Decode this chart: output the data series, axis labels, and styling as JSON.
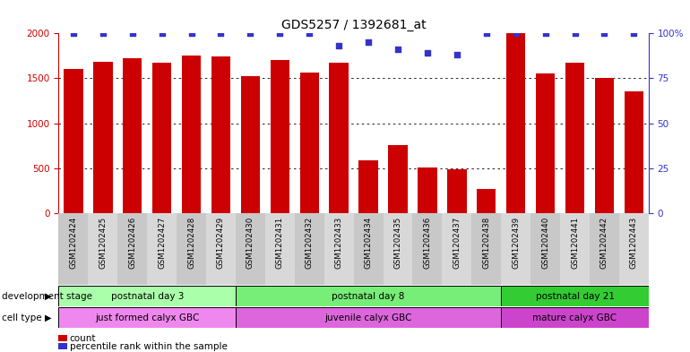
{
  "title": "GDS5257 / 1392681_at",
  "samples": [
    "GSM1202424",
    "GSM1202425",
    "GSM1202426",
    "GSM1202427",
    "GSM1202428",
    "GSM1202429",
    "GSM1202430",
    "GSM1202431",
    "GSM1202432",
    "GSM1202433",
    "GSM1202434",
    "GSM1202435",
    "GSM1202436",
    "GSM1202437",
    "GSM1202438",
    "GSM1202439",
    "GSM1202440",
    "GSM1202441",
    "GSM1202442",
    "GSM1202443"
  ],
  "counts": [
    1600,
    1680,
    1720,
    1670,
    1750,
    1740,
    1520,
    1700,
    1560,
    1670,
    590,
    760,
    510,
    490,
    265,
    2000,
    1550,
    1670,
    1500,
    1350
  ],
  "percentile_ranks": [
    100,
    100,
    100,
    100,
    100,
    100,
    100,
    100,
    100,
    93,
    95,
    91,
    89,
    88,
    100,
    100,
    100,
    100,
    100,
    100
  ],
  "bar_color": "#cc0000",
  "dot_color": "#3333cc",
  "left_ylim": [
    0,
    2000
  ],
  "right_ylim": [
    0,
    100
  ],
  "left_yticks": [
    0,
    500,
    1000,
    1500,
    2000
  ],
  "right_yticks": [
    0,
    25,
    50,
    75,
    100
  ],
  "right_yticklabels": [
    "0",
    "25",
    "50",
    "75",
    "100%"
  ],
  "grid_values": [
    500,
    1000,
    1500
  ],
  "development_stages": [
    {
      "label": "postnatal day 3",
      "start": 0,
      "end": 5,
      "color": "#aaffaa"
    },
    {
      "label": "postnatal day 8",
      "start": 6,
      "end": 14,
      "color": "#77ee77"
    },
    {
      "label": "postnatal day 21",
      "start": 15,
      "end": 19,
      "color": "#33cc33"
    }
  ],
  "cell_types": [
    {
      "label": "just formed calyx GBC",
      "start": 0,
      "end": 5,
      "color": "#ee88ee"
    },
    {
      "label": "juvenile calyx GBC",
      "start": 6,
      "end": 14,
      "color": "#dd66dd"
    },
    {
      "label": "mature calyx GBC",
      "start": 15,
      "end": 19,
      "color": "#cc44cc"
    }
  ],
  "dev_stage_label": "development stage",
  "cell_type_label": "cell type",
  "legend_count_label": "count",
  "legend_pct_label": "percentile rank within the sample",
  "left_tick_color": "#cc0000",
  "right_tick_color": "#3333cc",
  "tick_bg_color": "#cccccc"
}
